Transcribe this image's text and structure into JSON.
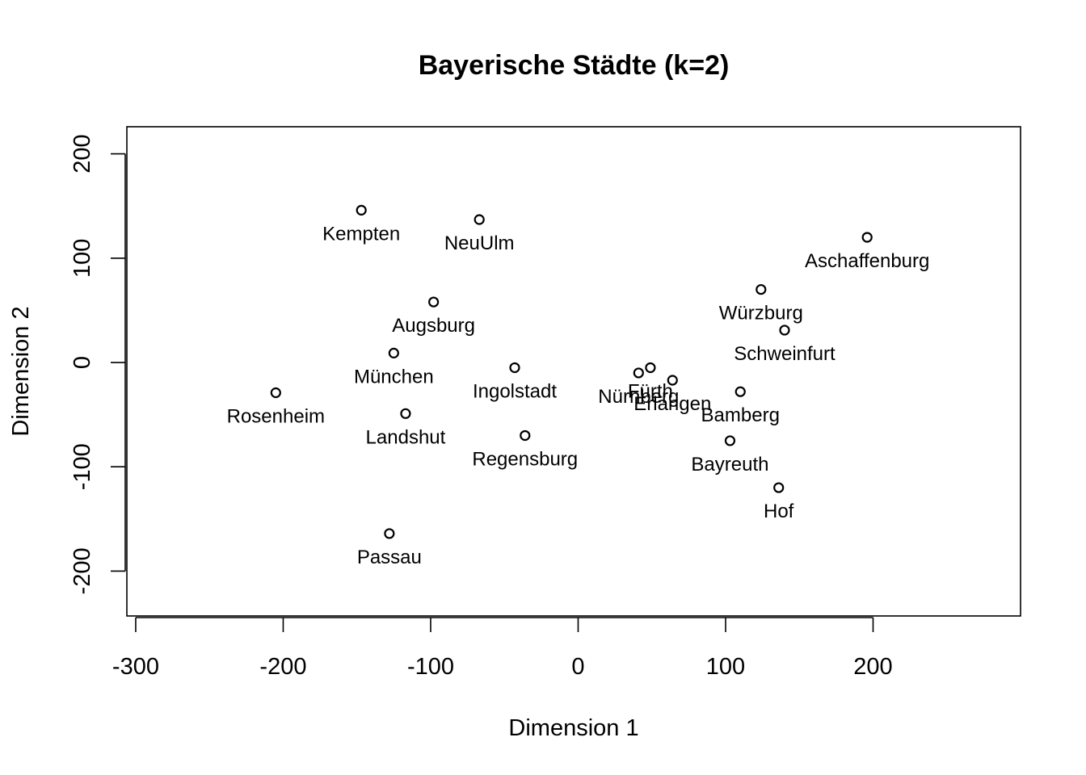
{
  "chart_data": {
    "type": "scatter",
    "title": "Bayerische Städte (k=2)",
    "xlabel": "Dimension 1",
    "ylabel": "Dimension 2",
    "xlim": [
      -306,
      300
    ],
    "ylim": [
      -243,
      226
    ],
    "xticks": [
      -300,
      -200,
      -100,
      0,
      100,
      200
    ],
    "yticks": [
      -200,
      -100,
      0,
      100,
      200
    ],
    "grid": false,
    "legend": "none",
    "points": [
      {
        "label": "Kempten",
        "x": -147,
        "y": 146
      },
      {
        "label": "NeuUlm",
        "x": -67,
        "y": 137
      },
      {
        "label": "Aschaffenburg",
        "x": 196,
        "y": 120
      },
      {
        "label": "Würzburg",
        "x": 124,
        "y": 70
      },
      {
        "label": "Augsburg",
        "x": -98,
        "y": 58
      },
      {
        "label": "Schweinfurt",
        "x": 140,
        "y": 31
      },
      {
        "label": "München",
        "x": -125,
        "y": 9
      },
      {
        "label": "Ingolstadt",
        "x": -43,
        "y": -5
      },
      {
        "label": "Fürth",
        "x": 49,
        "y": -5
      },
      {
        "label": "Nürnberg",
        "x": 41,
        "y": -10
      },
      {
        "label": "Erlangen",
        "x": 64,
        "y": -17
      },
      {
        "label": "Rosenheim",
        "x": -205,
        "y": -29
      },
      {
        "label": "Bamberg",
        "x": 110,
        "y": -28
      },
      {
        "label": "Landshut",
        "x": -117,
        "y": -49
      },
      {
        "label": "Regensburg",
        "x": -36,
        "y": -70
      },
      {
        "label": "Bayreuth",
        "x": 103,
        "y": -75
      },
      {
        "label": "Hof",
        "x": 136,
        "y": -120
      },
      {
        "label": "Passau",
        "x": -128,
        "y": -164
      }
    ]
  }
}
